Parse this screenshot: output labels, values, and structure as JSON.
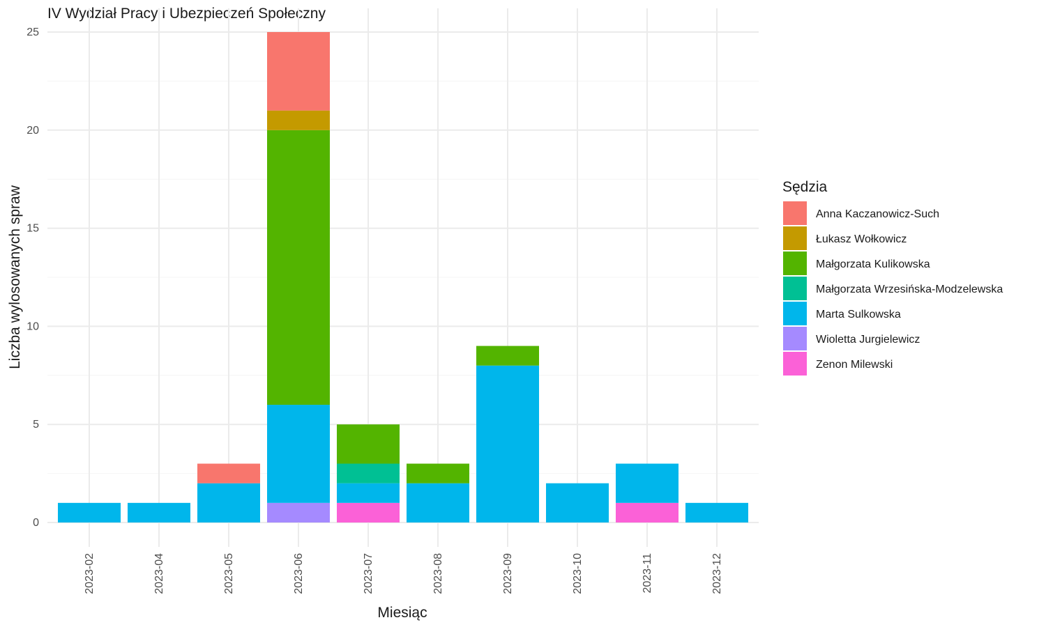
{
  "colors": {
    "Anna Kaczanowicz-Such": "#F8766D",
    "Łukasz Wołkowicz": "#C49A00",
    "Małgorzata Kulikowska": "#53B400",
    "Małgorzata Wrzesińska-Modzelewska": "#00C094",
    "Marta Sulkowska": "#00B6EB",
    "Wioletta Jurgielewicz": "#A58AFF",
    "Zenon Milewski": "#FB61D7"
  },
  "chart_data": {
    "type": "bar",
    "stacked": true,
    "title": "IV Wydział Pracy i Ubezpieczeń Społeczny",
    "xlabel": "Miesiąc",
    "ylabel": "Liczba wylosowanych spraw",
    "ylim": [
      0,
      25
    ],
    "yticks": [
      0,
      5,
      10,
      15,
      20,
      25
    ],
    "grid": true,
    "legend_title": "Sędzia",
    "legend_position": "right",
    "categories": [
      "2023-02",
      "2023-04",
      "2023-05",
      "2023-06",
      "2023-07",
      "2023-08",
      "2023-09",
      "2023-10",
      "2023-11",
      "2023-12"
    ],
    "series": [
      {
        "name": "Anna Kaczanowicz-Such",
        "values": [
          0,
          0,
          1,
          4,
          0,
          0,
          0,
          0,
          0,
          0
        ]
      },
      {
        "name": "Łukasz Wołkowicz",
        "values": [
          0,
          0,
          0,
          1,
          0,
          0,
          0,
          0,
          0,
          0
        ]
      },
      {
        "name": "Małgorzata Kulikowska",
        "values": [
          0,
          0,
          0,
          14,
          2,
          1,
          1,
          0,
          0,
          0
        ]
      },
      {
        "name": "Małgorzata Wrzesińska-Modzelewska",
        "values": [
          0,
          0,
          0,
          0,
          1,
          0,
          0,
          0,
          0,
          0
        ]
      },
      {
        "name": "Marta Sulkowska",
        "values": [
          1,
          1,
          2,
          5,
          1,
          2,
          8,
          2,
          2,
          1
        ]
      },
      {
        "name": "Wioletta Jurgielewicz",
        "values": [
          0,
          0,
          0,
          1,
          0,
          0,
          0,
          0,
          0,
          0
        ]
      },
      {
        "name": "Zenon Milewski",
        "values": [
          0,
          0,
          0,
          0,
          1,
          0,
          0,
          0,
          1,
          0
        ]
      }
    ]
  }
}
